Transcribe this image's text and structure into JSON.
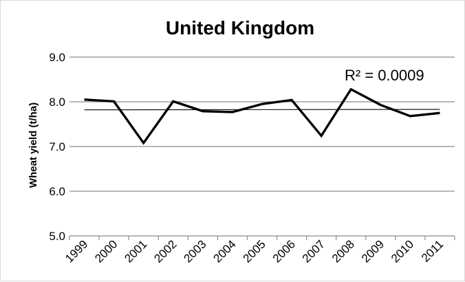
{
  "chart_data": {
    "type": "line",
    "title": "United Kingdom",
    "xlabel": "",
    "ylabel": "Wheat yield (t/ha)",
    "categories": [
      "1999",
      "2000",
      "2001",
      "2002",
      "2003",
      "2004",
      "2005",
      "2006",
      "2007",
      "2008",
      "2009",
      "2010",
      "2011"
    ],
    "series": [
      {
        "name": "",
        "values": [
          8.05,
          8.01,
          7.08,
          8.01,
          7.79,
          7.77,
          7.95,
          8.04,
          7.24,
          8.28,
          7.93,
          7.68,
          7.75
        ]
      }
    ],
    "trendline": {
      "type": "linear",
      "start_value": 7.82,
      "end_value": 7.83,
      "r_squared_label": "R² = 0.0009"
    },
    "ylim": [
      5.0,
      9.0
    ],
    "yticks": [
      "5.0",
      "6.0",
      "7.0",
      "8.0",
      "9.0"
    ],
    "grid": true,
    "legend": "none",
    "line_color": "#000000",
    "grid_color": "#8c8c8c"
  }
}
